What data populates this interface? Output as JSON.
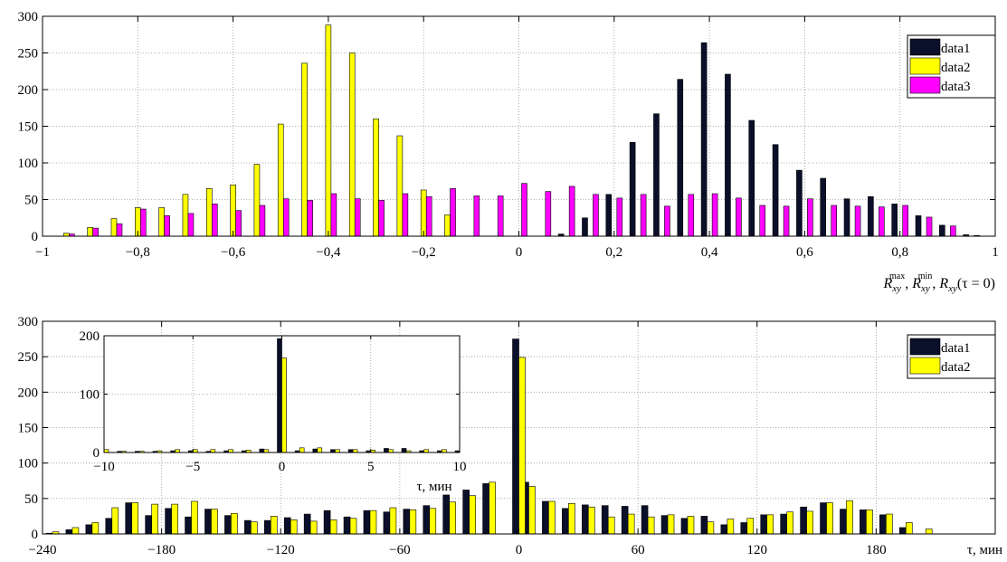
{
  "chart_data": [
    {
      "type": "bar",
      "grid": true,
      "legend_placement": "top-right",
      "xlim": [
        -1,
        1
      ],
      "ylim": [
        0,
        300
      ],
      "xticks": [
        -1,
        -0.8,
        -0.6,
        -0.4,
        -0.2,
        0,
        0.2,
        0.4,
        0.6,
        0.8,
        1
      ],
      "xtick_labels": [
        "−1",
        "−0,8",
        "−0,6",
        "−0,4",
        "−0,2",
        "0",
        "0,2",
        "0,4",
        "0,6",
        "0,8",
        "1"
      ],
      "yticks": [
        0,
        50,
        100,
        150,
        200,
        250,
        300
      ],
      "ytick_labels": [
        "0",
        "50",
        "100",
        "150",
        "200",
        "250",
        "300"
      ],
      "xlabel": "R_xy^max, R_xy^min, R_xy(τ = 0)",
      "xlabel_parts": {
        "r": "R",
        "sub": "xy",
        "sup_max": "max",
        "sup_min": "min",
        "sep": ", ",
        "tau_eq": "(τ = 0)"
      },
      "bin_centers": [
        -0.95,
        -0.9,
        -0.85,
        -0.8,
        -0.75,
        -0.7,
        -0.65,
        -0.6,
        -0.55,
        -0.5,
        -0.45,
        -0.4,
        -0.35,
        -0.3,
        -0.25,
        -0.2,
        -0.15,
        -0.1,
        -0.05,
        0,
        0.05,
        0.1,
        0.15,
        0.2,
        0.25,
        0.3,
        0.35,
        0.4,
        0.45,
        0.5,
        0.55,
        0.6,
        0.65,
        0.7,
        0.75,
        0.8,
        0.85,
        0.9,
        0.95
      ],
      "series": [
        {
          "name": "data1",
          "color": "#0a0f2a",
          "values": [
            0,
            0,
            0,
            0,
            0,
            0,
            0,
            0,
            0,
            0,
            0,
            0,
            0,
            0,
            0,
            0,
            0,
            0,
            0,
            0,
            0,
            3,
            25,
            57,
            128,
            167,
            214,
            264,
            221,
            158,
            125,
            90,
            79,
            51,
            54,
            44,
            28,
            15,
            2
          ]
        },
        {
          "name": "data2",
          "color": "#ffff00",
          "values": [
            4,
            12,
            24,
            39,
            39,
            57,
            65,
            70,
            98,
            153,
            236,
            288,
            250,
            160,
            137,
            63,
            29,
            0,
            0,
            0,
            0,
            0,
            0,
            0,
            0,
            0,
            0,
            0,
            0,
            0,
            0,
            0,
            0,
            0,
            0,
            0,
            0,
            0,
            0
          ]
        },
        {
          "name": "data3",
          "color": "#ff00ff",
          "values": [
            3,
            11,
            17,
            37,
            28,
            31,
            44,
            35,
            42,
            51,
            49,
            58,
            51,
            49,
            58,
            54,
            65,
            55,
            55,
            72,
            61,
            68,
            57,
            52,
            57,
            41,
            57,
            58,
            52,
            42,
            41,
            51,
            42,
            41,
            40,
            42,
            26,
            14,
            1
          ]
        }
      ]
    },
    {
      "type": "bar",
      "grid": true,
      "legend_placement": "top-right",
      "xlim": [
        -240,
        240
      ],
      "ylim": [
        0,
        300
      ],
      "xticks": [
        -240,
        -180,
        -120,
        -60,
        0,
        60,
        120,
        180
      ],
      "xtick_labels": [
        "−240",
        "−180",
        "−120",
        "−60",
        "0",
        "60",
        "120",
        "180"
      ],
      "yticks": [
        0,
        50,
        100,
        150,
        200,
        250,
        300
      ],
      "ytick_labels": [
        "0",
        "50",
        "100",
        "150",
        "200",
        "250",
        "300"
      ],
      "xlabel": "τ, мин",
      "bin_centers": [
        -235,
        -225,
        -215,
        -205,
        -195,
        -185,
        -175,
        -165,
        -155,
        -145,
        -135,
        -125,
        -115,
        -105,
        -95,
        -85,
        -75,
        -65,
        -55,
        -45,
        -35,
        -25,
        -15,
        -5,
        0,
        5,
        15,
        25,
        35,
        45,
        55,
        65,
        75,
        85,
        95,
        105,
        115,
        125,
        135,
        145,
        155,
        165,
        175,
        185,
        195,
        205,
        215,
        225,
        235
      ],
      "series": [
        {
          "name": "data1",
          "color": "#0a0f2a",
          "values": [
            1,
            6,
            13,
            22,
            44,
            26,
            36,
            24,
            35,
            26,
            19,
            19,
            23,
            28,
            33,
            24,
            33,
            31,
            35,
            40,
            55,
            62,
            71,
            0,
            275,
            73,
            46,
            36,
            41,
            40,
            39,
            40,
            26,
            22,
            25,
            13,
            16,
            27,
            28,
            38,
            44,
            35,
            34,
            27,
            9,
            0,
            0,
            0,
            0
          ]
        },
        {
          "name": "data2",
          "color": "#ffff00",
          "values": [
            3,
            9,
            16,
            37,
            44,
            42,
            42,
            46,
            35,
            29,
            17,
            25,
            20,
            18,
            20,
            22,
            33,
            37,
            34,
            36,
            45,
            54,
            73,
            0,
            249,
            67,
            46,
            43,
            38,
            24,
            28,
            24,
            27,
            25,
            17,
            21,
            22,
            27,
            31,
            32,
            44,
            47,
            34,
            28,
            16,
            7,
            0,
            0,
            0
          ]
        }
      ],
      "inset": {
        "xlim": [
          -10,
          10
        ],
        "ylim": [
          0,
          200
        ],
        "xticks": [
          -10,
          -5,
          0,
          5,
          10
        ],
        "xtick_labels": [
          "−10",
          "−5",
          "0",
          "5",
          "10"
        ],
        "yticks": [
          0,
          100,
          200
        ],
        "ytick_labels": [
          "0",
          "100",
          "200"
        ],
        "xlabel": "τ, мин",
        "bin_centers": [
          -10,
          -9,
          -8,
          -7,
          -6,
          -5,
          -4,
          -3,
          -2,
          -1,
          0,
          1,
          2,
          3,
          4,
          5,
          6,
          7,
          8,
          9,
          10
        ],
        "series": [
          {
            "name": "data1",
            "color": "#0a0f2a",
            "values": [
              0,
              2,
              2,
              2,
              3,
              3,
              2,
              3,
              3,
              6,
              195,
              3,
              6,
              5,
              5,
              3,
              7,
              7,
              3,
              3,
              3
            ]
          },
          {
            "name": "data2",
            "color": "#ffff00",
            "values": [
              5,
              2,
              2,
              3,
              5,
              5,
              5,
              5,
              4,
              5,
              162,
              8,
              8,
              5,
              5,
              4,
              5,
              3,
              5,
              5,
              0
            ]
          }
        ]
      }
    }
  ]
}
